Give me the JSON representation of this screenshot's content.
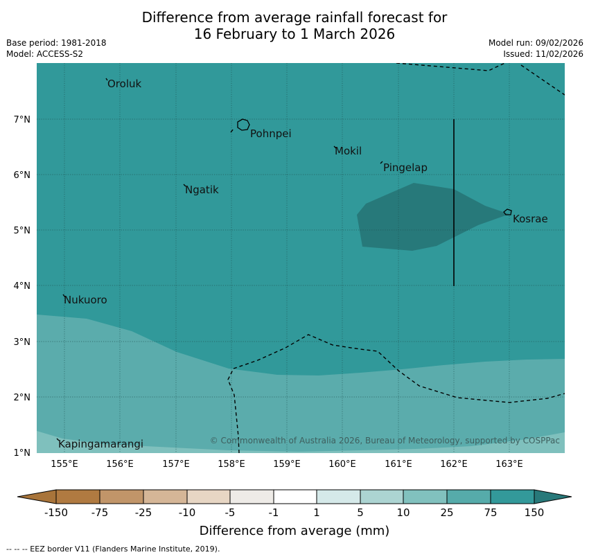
{
  "title": {
    "line1": "Difference from average rainfall forecast for",
    "line2": "16 February to 1 March 2026"
  },
  "meta": {
    "base_period": "Base period: 1981-2018",
    "model": "Model: ACCESS-S2",
    "model_run": "Model run: 09/02/2026",
    "issued": "Issued: 11/02/2026"
  },
  "map": {
    "lon_labels": [
      "155°E",
      "156°E",
      "157°E",
      "158°E",
      "159°E",
      "160°E",
      "161°E",
      "162°E",
      "163°E"
    ],
    "lat_labels": [
      "7°N",
      "6°N",
      "5°N",
      "4°N",
      "3°N",
      "2°N",
      "1°N"
    ],
    "places": {
      "oroluk": "Oroluk",
      "pohnpei": "Pohnpei",
      "mokil": "Mokil",
      "pingelap": "Pingelap",
      "ngatik": "Ngatik",
      "kosrae": "Kosrae",
      "nukuoro": "Nukuoro",
      "kapingamarangi": "Kapingamarangi"
    },
    "copyright": "© Commonwealth of Australia 2026, Bureau of Meteorology, supported by COSPPac",
    "colors": {
      "class_75_150": "#31999a",
      "class_above_150": "#27797a",
      "class_25_75": "#5bacac",
      "class_10_25": "#7fc0bd"
    }
  },
  "colorbar": {
    "labels": [
      "-150",
      "-75",
      "-25",
      "-10",
      "-5",
      "-1",
      "1",
      "5",
      "10",
      "25",
      "75",
      "150"
    ],
    "colors": [
      "#a8743a",
      "#b07a41",
      "#c19569",
      "#d5b697",
      "#e7d6c4",
      "#eeebe7",
      "#ffffff",
      "#d5e9e9",
      "#acd4d2",
      "#81c1be",
      "#56abaa",
      "#33999a",
      "#28797a"
    ],
    "title": "Difference from average (mm)"
  },
  "footnote": "--  --  -- EEZ border V11 (Flanders Marine Institute, 2019)."
}
